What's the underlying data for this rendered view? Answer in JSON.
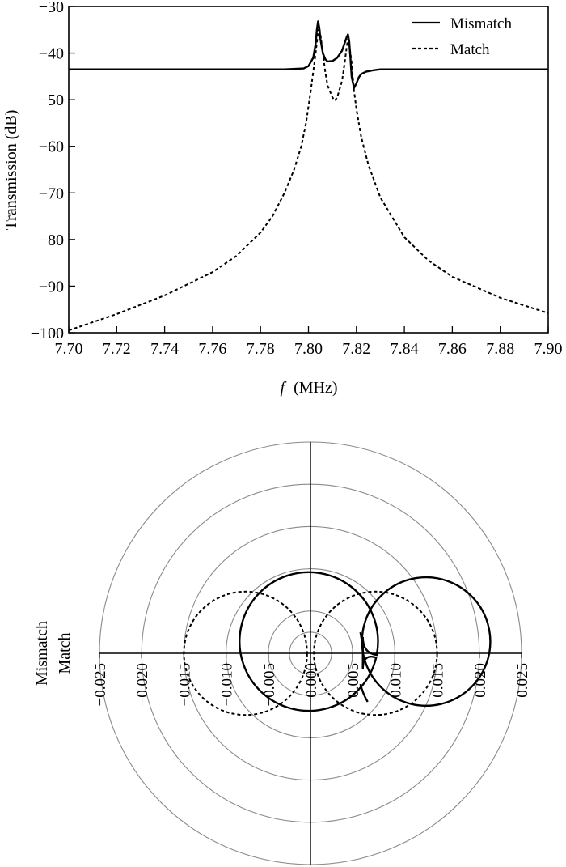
{
  "chart_data": [
    {
      "type": "line",
      "xlabel_italic": "f",
      "xlabel_unit": "(MHz)",
      "ylabel": "Transmission (dB)",
      "xlim": [
        7.7,
        7.9
      ],
      "ylim": [
        -100,
        -30
      ],
      "x_ticks": [
        "7.70",
        "7.72",
        "7.74",
        "7.76",
        "7.78",
        "7.80",
        "7.82",
        "7.84",
        "7.86",
        "7.88",
        "7.90"
      ],
      "y_ticks": [
        "−30",
        "−40",
        "−50",
        "−60",
        "−70",
        "−80",
        "−90",
        "−100"
      ],
      "x_tick_values": [
        7.7,
        7.72,
        7.74,
        7.76,
        7.78,
        7.8,
        7.82,
        7.84,
        7.86,
        7.88,
        7.9
      ],
      "y_tick_values": [
        -30,
        -40,
        -50,
        -60,
        -70,
        -80,
        -90,
        -100
      ],
      "legend_position": "top-right",
      "series": [
        {
          "name": "Mismatch",
          "style": "solid",
          "x": [
            7.7,
            7.75,
            7.79,
            7.798,
            7.8,
            7.802,
            7.803,
            7.8035,
            7.804,
            7.8045,
            7.805,
            7.806,
            7.807,
            7.808,
            7.81,
            7.812,
            7.814,
            7.815,
            7.816,
            7.8165,
            7.817,
            7.8175,
            7.818,
            7.819,
            7.82,
            7.821,
            7.822,
            7.824,
            7.827,
            7.83,
            7.84,
            7.9
          ],
          "y": [
            -43.5,
            -43.5,
            -43.5,
            -43.3,
            -42.8,
            -41,
            -38,
            -35,
            -33.2,
            -34.5,
            -37,
            -40,
            -41.3,
            -41.8,
            -41.7,
            -41,
            -39.5,
            -38,
            -36.5,
            -36,
            -37.5,
            -41,
            -45,
            -47.5,
            -46.5,
            -45.2,
            -44.5,
            -44,
            -43.7,
            -43.5,
            -43.5,
            -43.5
          ]
        },
        {
          "name": "Match",
          "style": "dashed",
          "x": [
            7.7,
            7.72,
            7.74,
            7.76,
            7.77,
            7.78,
            7.785,
            7.79,
            7.794,
            7.797,
            7.799,
            7.801,
            7.802,
            7.803,
            7.804,
            7.8045,
            7.805,
            7.806,
            7.807,
            7.808,
            7.81,
            7.811,
            7.812,
            7.814,
            7.815,
            7.816,
            7.8165,
            7.817,
            7.818,
            7.819,
            7.82,
            7.822,
            7.825,
            7.83,
            7.84,
            7.85,
            7.86,
            7.88,
            7.9
          ],
          "y": [
            -99.5,
            -96,
            -92,
            -87,
            -83.5,
            -78.5,
            -75,
            -70,
            -65,
            -60,
            -55,
            -48,
            -44,
            -40,
            -35.5,
            -34.5,
            -36,
            -40,
            -44,
            -47,
            -49.5,
            -50.2,
            -49.5,
            -46,
            -42.5,
            -38.5,
            -37,
            -38,
            -42,
            -48,
            -52,
            -58,
            -64,
            -71,
            -79.5,
            -84.5,
            -88,
            -92.5,
            -95.8
          ]
        }
      ]
    },
    {
      "type": "polar",
      "side_labels": [
        "Mismatch",
        "Match"
      ],
      "r_ticks": [
        "−0.025",
        "−0.020",
        "−0.015",
        "−0.010",
        "−0.005",
        "0.000",
        "0.005",
        "0.010",
        "0.015",
        "0.020",
        "0.025"
      ],
      "r_tick_values": [
        -0.025,
        -0.02,
        -0.015,
        -0.01,
        -0.005,
        0.0,
        0.005,
        0.01,
        0.015,
        0.02,
        0.025
      ],
      "grid_circle_radii": [
        0.0025,
        0.005,
        0.01,
        0.015,
        0.02,
        0.025
      ],
      "rlim": [
        -0.025,
        0.025
      ],
      "series": [
        {
          "label_ref": "Mismatch",
          "style": "solid",
          "curves": [
            {
              "kind": "circle",
              "center": [
                -0.0002,
                0.0014
              ],
              "radius": 0.0082,
              "excluded_from": 0.0062
            },
            {
              "kind": "circle",
              "center": [
                0.0137,
                0.0014
              ],
              "radius": 0.0076,
              "excluded_to": 0.0062
            }
          ],
          "cusp": [
            0.0062,
            0.0
          ]
        },
        {
          "label_ref": "Match",
          "style": "dashed",
          "curves": [
            {
              "kind": "circle",
              "center": [
                -0.0077,
                0.0
              ],
              "radius": 0.0073
            },
            {
              "kind": "circle",
              "center": [
                0.0077,
                0.0
              ],
              "radius": 0.0073
            }
          ]
        }
      ]
    }
  ]
}
